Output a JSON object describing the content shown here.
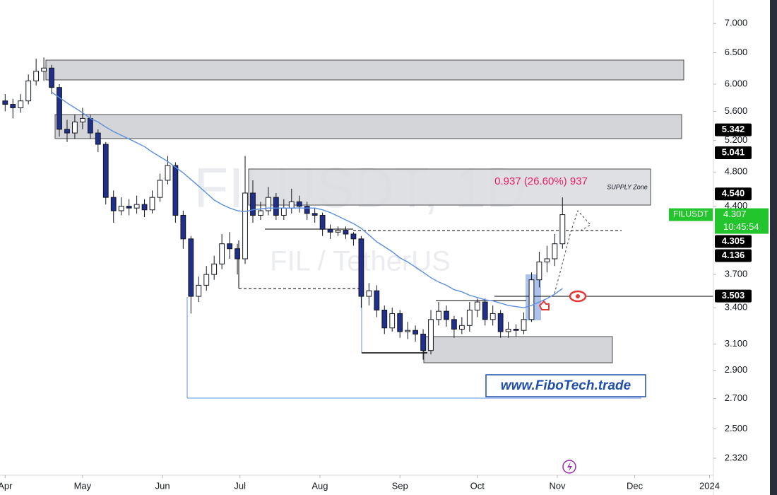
{
  "chart_data": {
    "type": "candlestick",
    "watermark": {
      "symbol": "FILUSDT, 1D",
      "pair": "FIL / TetherUS"
    },
    "annotations": {
      "measure": "0.937 (26.60%) 937",
      "zone": "SUPPLY Zone",
      "brand": "www.FiboTech.trade"
    },
    "log_scale": true,
    "up_color": "#ffffff",
    "down_color": "#1f2f8a",
    "wick_color": "#131722",
    "x": [
      0,
      3,
      6,
      9,
      12,
      15,
      18,
      21,
      24,
      27,
      30,
      33,
      36,
      39,
      42,
      45,
      48,
      51,
      54,
      57,
      60,
      63,
      66,
      69,
      72,
      75,
      78,
      81,
      84,
      87,
      90,
      93,
      96,
      99,
      102,
      105,
      108,
      111,
      114,
      117,
      120,
      123,
      126,
      129,
      132,
      135,
      138,
      141,
      144,
      147,
      150,
      153,
      156,
      159,
      162,
      165,
      168,
      171,
      174,
      177,
      180,
      183,
      186,
      189,
      192,
      195,
      198,
      201,
      204,
      207,
      210,
      213,
      216
    ],
    "open": [
      5.75,
      5.7,
      5.65,
      5.75,
      6.05,
      6.2,
      6.25,
      5.95,
      5.35,
      5.3,
      5.45,
      5.5,
      5.3,
      5.15,
      4.5,
      4.35,
      4.4,
      4.38,
      4.42,
      4.36,
      4.5,
      4.7,
      4.88,
      4.3,
      4.05,
      3.5,
      3.6,
      3.7,
      3.8,
      4.0,
      3.95,
      3.85,
      4.55,
      4.3,
      4.35,
      4.5,
      4.3,
      4.38,
      4.45,
      4.4,
      4.32,
      4.3,
      4.15,
      4.12,
      4.14,
      4.1,
      4.05,
      3.5,
      3.55,
      3.38,
      3.23,
      3.35,
      3.2,
      3.21,
      3.18,
      3.05,
      3.3,
      3.37,
      3.3,
      3.22,
      3.25,
      3.38,
      3.45,
      3.3,
      3.35,
      3.2,
      3.22,
      3.21,
      3.3,
      3.65,
      3.82,
      3.85,
      4.0
    ],
    "high": [
      5.85,
      5.78,
      5.85,
      6.15,
      6.4,
      6.42,
      6.3,
      6.0,
      5.48,
      5.55,
      5.65,
      5.55,
      5.35,
      5.18,
      4.58,
      4.5,
      4.48,
      4.52,
      4.48,
      4.58,
      4.78,
      5.0,
      4.92,
      4.35,
      4.08,
      3.68,
      3.78,
      3.88,
      4.1,
      4.12,
      4.0,
      5.0,
      4.7,
      4.45,
      4.62,
      4.55,
      4.48,
      4.6,
      4.52,
      4.45,
      4.38,
      4.33,
      4.2,
      4.18,
      4.18,
      4.12,
      4.08,
      3.62,
      3.6,
      3.42,
      3.4,
      3.38,
      3.28,
      3.25,
      3.22,
      3.38,
      3.45,
      3.42,
      3.33,
      3.32,
      3.45,
      3.48,
      3.48,
      3.42,
      3.38,
      3.28,
      3.26,
      3.36,
      3.72,
      3.92,
      3.98,
      4.1,
      4.5
    ],
    "low": [
      5.6,
      5.5,
      5.58,
      5.7,
      5.98,
      6.05,
      5.85,
      5.25,
      5.18,
      5.22,
      5.35,
      5.22,
      5.05,
      4.42,
      4.22,
      4.3,
      4.3,
      4.32,
      4.28,
      4.32,
      4.45,
      4.65,
      4.22,
      3.95,
      3.35,
      3.45,
      3.55,
      3.65,
      3.75,
      3.85,
      3.7,
      3.8,
      4.22,
      4.25,
      4.3,
      4.25,
      4.25,
      4.32,
      4.33,
      4.25,
      4.22,
      4.08,
      4.05,
      4.08,
      4.05,
      3.98,
      3.4,
      3.42,
      3.32,
      3.18,
      3.2,
      3.15,
      3.14,
      3.12,
      2.98,
      3.02,
      3.25,
      3.24,
      3.15,
      3.18,
      3.2,
      3.32,
      3.25,
      3.25,
      3.15,
      3.15,
      3.16,
      3.18,
      3.28,
      3.58,
      3.72,
      3.78,
      3.95
    ],
    "close": [
      5.7,
      5.65,
      5.75,
      6.05,
      6.2,
      6.25,
      5.95,
      5.35,
      5.3,
      5.45,
      5.5,
      5.3,
      5.15,
      4.5,
      4.35,
      4.4,
      4.38,
      4.42,
      4.36,
      4.5,
      4.7,
      4.88,
      4.3,
      4.05,
      3.5,
      3.6,
      3.7,
      3.8,
      4.0,
      3.95,
      3.85,
      4.55,
      4.3,
      4.35,
      4.5,
      4.3,
      4.38,
      4.45,
      4.4,
      4.32,
      4.3,
      4.15,
      4.12,
      4.14,
      4.1,
      4.05,
      3.5,
      3.55,
      3.38,
      3.23,
      3.35,
      3.2,
      3.21,
      3.18,
      3.05,
      3.3,
      3.37,
      3.3,
      3.22,
      3.25,
      3.38,
      3.45,
      3.3,
      3.35,
      3.2,
      3.22,
      3.21,
      3.3,
      3.65,
      3.82,
      3.85,
      4.0,
      4.307
    ],
    "moving_average": {
      "color": "#5b8fe0",
      "values": [
        null,
        null,
        null,
        null,
        null,
        null,
        5.88,
        5.8,
        5.72,
        5.65,
        5.58,
        5.5,
        5.45,
        5.38,
        5.32,
        5.27,
        5.22,
        5.17,
        5.12,
        5.05,
        4.99,
        4.93,
        4.86,
        4.79,
        4.71,
        4.63,
        4.55,
        4.47,
        4.42,
        4.38,
        4.35,
        4.34,
        4.36,
        4.37,
        4.38,
        4.38,
        4.38,
        4.38,
        4.38,
        4.38,
        4.38,
        4.36,
        4.33,
        4.29,
        4.25,
        4.21,
        4.16,
        4.09,
        4.02,
        3.97,
        3.92,
        3.86,
        3.82,
        3.77,
        3.72,
        3.67,
        3.63,
        3.6,
        3.56,
        3.54,
        3.51,
        3.49,
        3.47,
        3.46,
        3.44,
        3.42,
        3.41,
        3.4,
        3.42,
        3.45,
        3.48,
        3.52,
        3.57
      ]
    },
    "xlim": [
      -2,
      274.5
    ],
    "xticks": [
      {
        "value": 0,
        "label": "Apr"
      },
      {
        "value": 30,
        "label": "May"
      },
      {
        "value": 61,
        "label": "Jun"
      },
      {
        "value": 91,
        "label": "Jul"
      },
      {
        "value": 122,
        "label": "Aug"
      },
      {
        "value": 153,
        "label": "Sep"
      },
      {
        "value": 183,
        "label": "Oct"
      },
      {
        "value": 214,
        "label": "Nov"
      },
      {
        "value": 244,
        "label": "Dec"
      },
      {
        "value": 273,
        "label": "2024"
      }
    ],
    "ylim": [
      2.222,
      7.43
    ],
    "yticks": [
      {
        "value": 7,
        "label": "7.000"
      },
      {
        "value": 6.5,
        "label": "6.500"
      },
      {
        "value": 6,
        "label": "6.000"
      },
      {
        "value": 5.6,
        "label": "5.600"
      },
      {
        "value": 5.2,
        "label": "5.200"
      },
      {
        "value": 4.8,
        "label": "4.800"
      },
      {
        "value": 4.4,
        "label": "4.400"
      },
      {
        "value": 3.7,
        "label": "3.700"
      },
      {
        "value": 3.4,
        "label": "3.400"
      },
      {
        "value": 3.1,
        "label": "3.100"
      },
      {
        "value": 2.9,
        "label": "2.900"
      },
      {
        "value": 2.7,
        "label": "2.700"
      },
      {
        "value": 2.5,
        "label": "2.500"
      },
      {
        "value": 2.32,
        "label": "2.320"
      }
    ],
    "last_price": {
      "symbol": "FILUSDT",
      "value": 4.307,
      "label": "4.307",
      "countdown": "10:45:54",
      "color": "#22c52c"
    },
    "price_labels": [
      {
        "value": 5.342,
        "label": "5.342"
      },
      {
        "value": 5.041,
        "label": "5.041"
      },
      {
        "value": 4.54,
        "label": "4.540"
      },
      {
        "value": 4.305,
        "label": "4.305"
      },
      {
        "value": 4.136,
        "label": "4.136"
      },
      {
        "value": 3.503,
        "label": "3.503"
      }
    ]
  }
}
